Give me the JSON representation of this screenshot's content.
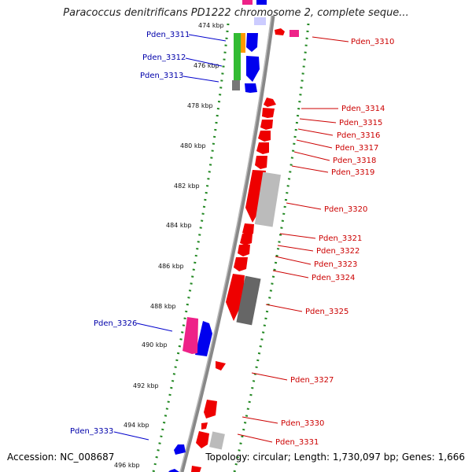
{
  "title": "Paracoccus denitrificans PD1222 chromosome 2, complete seque...",
  "footer": {
    "accession": "Accession: NC_008687",
    "summary": "Topology: circular; Length: 1,730,097 bp; Genes: 1,666"
  },
  "ticks": [
    "474 kbp",
    "476 kbp",
    "478 kbp",
    "480 kbp",
    "482 kbp",
    "484 kbp",
    "486 kbp",
    "488 kbp",
    "490 kbp",
    "492 kbp",
    "494 kbp",
    "496 kbp"
  ],
  "left_labels": [
    "Pden_3311",
    "Pden_3312",
    "Pden_3313",
    "Pden_3326",
    "Pden_3333"
  ],
  "right_labels": [
    "Pden_3310",
    "Pden_3314",
    "Pden_3315",
    "Pden_3316",
    "Pden_3317",
    "Pden_3318",
    "Pden_3319",
    "Pden_3320",
    "Pden_3321",
    "Pden_3322",
    "Pden_3323",
    "Pden_3324",
    "Pden_3325",
    "Pden_3327",
    "Pden_3330",
    "Pden_3331"
  ],
  "colors": {
    "forward_gene": "#0000ee",
    "reverse_gene": "#ee0000",
    "cog_green": "#33bb33",
    "cog_pink": "#ee2288",
    "cog_orange": "#ff9900",
    "cog_gray": "#888888",
    "tick_dots": "#228822",
    "backbone": "#888888"
  }
}
